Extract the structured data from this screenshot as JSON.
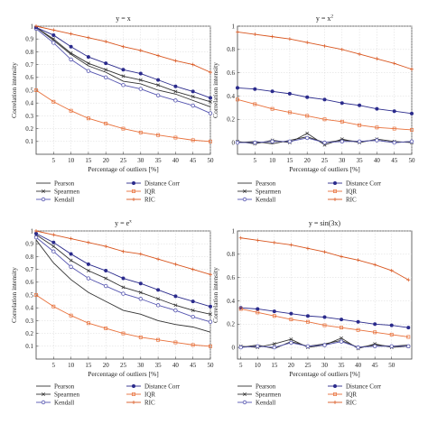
{
  "chart_data": [
    {
      "type": "line",
      "title_base": "y = x",
      "title_sup": "",
      "xlabel": "Percentage of outliers [%]",
      "ylabel": "Correlation intensity",
      "xlim": [
        0,
        50
      ],
      "ylim": [
        0,
        1
      ],
      "xticks": [
        5,
        10,
        15,
        20,
        25,
        30,
        35,
        40,
        45,
        50
      ],
      "yticks": [
        0.1,
        0.2,
        0.3,
        0.4,
        0.5,
        0.6,
        0.7,
        0.8,
        0.9,
        1
      ],
      "series": [
        {
          "name": "Pearson",
          "x": [
            0,
            5,
            10,
            15,
            20,
            25,
            30,
            35,
            40,
            45,
            50
          ],
          "values": [
            0.99,
            0.89,
            0.78,
            0.69,
            0.64,
            0.57,
            0.55,
            0.5,
            0.47,
            0.42,
            0.37
          ]
        },
        {
          "name": "Spearmen",
          "x": [
            0,
            5,
            10,
            15,
            20,
            25,
            30,
            35,
            40,
            45,
            50
          ],
          "values": [
            0.99,
            0.9,
            0.79,
            0.71,
            0.66,
            0.61,
            0.58,
            0.54,
            0.49,
            0.45,
            0.41
          ]
        },
        {
          "name": "Kendall",
          "x": [
            0,
            5,
            10,
            15,
            20,
            25,
            30,
            35,
            40,
            45,
            50
          ],
          "values": [
            0.98,
            0.87,
            0.74,
            0.65,
            0.6,
            0.54,
            0.51,
            0.46,
            0.42,
            0.38,
            0.32
          ]
        },
        {
          "name": "Distance Corr",
          "x": [
            0,
            5,
            10,
            15,
            20,
            25,
            30,
            35,
            40,
            45,
            50
          ],
          "values": [
            0.99,
            0.93,
            0.84,
            0.76,
            0.71,
            0.66,
            0.63,
            0.58,
            0.53,
            0.49,
            0.44
          ]
        },
        {
          "name": "IQR",
          "x": [
            0,
            5,
            10,
            15,
            20,
            25,
            30,
            35,
            40,
            45,
            50
          ],
          "values": [
            0.5,
            0.41,
            0.34,
            0.28,
            0.24,
            0.2,
            0.17,
            0.15,
            0.13,
            0.11,
            0.1
          ]
        },
        {
          "name": "RIC",
          "x": [
            0,
            5,
            10,
            15,
            20,
            25,
            30,
            35,
            40,
            45,
            50
          ],
          "values": [
            1,
            0.97,
            0.94,
            0.91,
            0.88,
            0.84,
            0.81,
            0.77,
            0.73,
            0.7,
            0.64
          ]
        }
      ]
    },
    {
      "type": "line",
      "title_base": "y = x",
      "title_sup": "2",
      "xlabel": "Percentage of outliers [%]",
      "ylabel": "Correlation intensity",
      "xlim": [
        0,
        50
      ],
      "ylim": [
        -0.1,
        1
      ],
      "xticks": [
        5,
        10,
        15,
        20,
        25,
        30,
        35,
        40,
        45,
        50
      ],
      "yticks": [
        0,
        0.2,
        0.4,
        0.6,
        0.8,
        1
      ],
      "series": [
        {
          "name": "Pearson",
          "x": [
            0,
            5,
            10,
            15,
            20,
            25,
            30,
            35,
            40,
            45,
            50
          ],
          "values": [
            0.0,
            0.01,
            -0.01,
            0.02,
            0.05,
            0.0,
            0.02,
            0.01,
            0.02,
            0.0,
            0.01
          ]
        },
        {
          "name": "Spearmen",
          "x": [
            0,
            5,
            10,
            15,
            20,
            25,
            30,
            35,
            40,
            45,
            50
          ],
          "values": [
            0.01,
            -0.01,
            0.02,
            0.0,
            0.08,
            -0.02,
            0.03,
            0.0,
            0.03,
            0.01,
            0.0
          ]
        },
        {
          "name": "Kendall",
          "x": [
            0,
            5,
            10,
            15,
            20,
            25,
            30,
            35,
            40,
            45,
            50
          ],
          "values": [
            0.0,
            0.0,
            0.01,
            0.01,
            0.04,
            0.0,
            0.01,
            0.01,
            0.02,
            0.0,
            0.01
          ]
        },
        {
          "name": "Distance Corr",
          "x": [
            0,
            5,
            10,
            15,
            20,
            25,
            30,
            35,
            40,
            45,
            50
          ],
          "values": [
            0.47,
            0.46,
            0.44,
            0.42,
            0.39,
            0.37,
            0.34,
            0.32,
            0.29,
            0.27,
            0.25
          ]
        },
        {
          "name": "IQR",
          "x": [
            0,
            5,
            10,
            15,
            20,
            25,
            30,
            35,
            40,
            45,
            50
          ],
          "values": [
            0.37,
            0.33,
            0.29,
            0.26,
            0.23,
            0.2,
            0.18,
            0.15,
            0.13,
            0.12,
            0.11
          ]
        },
        {
          "name": "RIC",
          "x": [
            0,
            5,
            10,
            15,
            20,
            25,
            30,
            35,
            40,
            45,
            50
          ],
          "values": [
            0.95,
            0.93,
            0.91,
            0.89,
            0.86,
            0.83,
            0.8,
            0.76,
            0.72,
            0.68,
            0.63
          ]
        }
      ]
    },
    {
      "type": "line",
      "title_base": "y = e",
      "title_sup": "x",
      "xlabel": "Percentage of outliers [%]",
      "ylabel": "Correlation intensity",
      "xlim": [
        0,
        50
      ],
      "ylim": [
        0,
        1
      ],
      "xticks": [
        5,
        10,
        15,
        20,
        25,
        30,
        35,
        40,
        45,
        50
      ],
      "yticks": [
        0.1,
        0.2,
        0.3,
        0.4,
        0.5,
        0.6,
        0.7,
        0.8,
        0.9,
        1
      ],
      "series": [
        {
          "name": "Pearson",
          "x": [
            0,
            5,
            10,
            15,
            20,
            25,
            30,
            35,
            40,
            45,
            50
          ],
          "values": [
            0.93,
            0.75,
            0.62,
            0.52,
            0.45,
            0.38,
            0.35,
            0.3,
            0.27,
            0.25,
            0.21
          ]
        },
        {
          "name": "Spearmen",
          "x": [
            0,
            5,
            10,
            15,
            20,
            25,
            30,
            35,
            40,
            45,
            50
          ],
          "values": [
            0.97,
            0.88,
            0.77,
            0.69,
            0.63,
            0.56,
            0.52,
            0.47,
            0.42,
            0.38,
            0.35
          ]
        },
        {
          "name": "Kendall",
          "x": [
            0,
            5,
            10,
            15,
            20,
            25,
            30,
            35,
            40,
            45,
            50
          ],
          "values": [
            0.95,
            0.84,
            0.72,
            0.63,
            0.57,
            0.51,
            0.47,
            0.42,
            0.38,
            0.33,
            0.29
          ]
        },
        {
          "name": "Distance Corr",
          "x": [
            0,
            5,
            10,
            15,
            20,
            25,
            30,
            35,
            40,
            45,
            50
          ],
          "values": [
            0.98,
            0.91,
            0.82,
            0.74,
            0.69,
            0.63,
            0.59,
            0.54,
            0.49,
            0.45,
            0.41
          ]
        },
        {
          "name": "IQR",
          "x": [
            0,
            5,
            10,
            15,
            20,
            25,
            30,
            35,
            40,
            45,
            50
          ],
          "values": [
            0.5,
            0.41,
            0.34,
            0.28,
            0.24,
            0.2,
            0.17,
            0.15,
            0.13,
            0.11,
            0.1
          ]
        },
        {
          "name": "RIC",
          "x": [
            0,
            5,
            10,
            15,
            20,
            25,
            30,
            35,
            40,
            45,
            50
          ],
          "values": [
            1,
            0.97,
            0.94,
            0.91,
            0.88,
            0.84,
            0.82,
            0.78,
            0.74,
            0.7,
            0.66
          ]
        }
      ]
    },
    {
      "type": "line",
      "title_base": "y = sin(3x)",
      "title_sup": "",
      "xlabel": "Percentage of outliers [%]",
      "ylabel": "Correlation intensity",
      "xlim": [
        4,
        56
      ],
      "ylim": [
        -0.1,
        1
      ],
      "xticks": [
        5,
        10,
        15,
        20,
        25,
        30,
        35,
        40,
        45,
        50
      ],
      "yticks": [
        0,
        0.2,
        0.4,
        0.6,
        0.8,
        1
      ],
      "series": [
        {
          "name": "Pearson",
          "x": [
            5,
            10,
            15,
            20,
            25,
            30,
            35,
            40,
            45,
            50,
            55
          ],
          "values": [
            0.0,
            0.02,
            -0.01,
            0.05,
            0.01,
            0.03,
            0.06,
            0.0,
            0.02,
            0.01,
            0.02
          ]
        },
        {
          "name": "Spearmen",
          "x": [
            5,
            10,
            15,
            20,
            25,
            30,
            35,
            40,
            45,
            50,
            55
          ],
          "values": [
            0.01,
            0.0,
            0.03,
            0.07,
            0.0,
            0.02,
            0.08,
            -0.01,
            0.03,
            0.0,
            0.01
          ]
        },
        {
          "name": "Kendall",
          "x": [
            5,
            10,
            15,
            20,
            25,
            30,
            35,
            40,
            45,
            50,
            55
          ],
          "values": [
            0.0,
            0.01,
            0.0,
            0.04,
            0.01,
            0.02,
            0.05,
            0.0,
            0.01,
            0.01,
            0.01
          ]
        },
        {
          "name": "Distance Corr",
          "x": [
            5,
            10,
            15,
            20,
            25,
            30,
            35,
            40,
            45,
            50,
            55
          ],
          "values": [
            0.34,
            0.33,
            0.31,
            0.29,
            0.27,
            0.26,
            0.24,
            0.22,
            0.2,
            0.19,
            0.17
          ]
        },
        {
          "name": "IQR",
          "x": [
            5,
            10,
            15,
            20,
            25,
            30,
            35,
            40,
            45,
            50,
            55
          ],
          "values": [
            0.33,
            0.3,
            0.27,
            0.24,
            0.22,
            0.19,
            0.17,
            0.15,
            0.13,
            0.11,
            0.09
          ]
        },
        {
          "name": "RIC",
          "x": [
            5,
            10,
            15,
            20,
            25,
            30,
            35,
            40,
            45,
            50,
            55
          ],
          "values": [
            0.94,
            0.92,
            0.9,
            0.88,
            0.85,
            0.82,
            0.78,
            0.75,
            0.71,
            0.66,
            0.58
          ]
        }
      ]
    }
  ],
  "legend": {
    "placement": "below each panel, two columns",
    "entries": [
      {
        "name": "Pearson",
        "color": "#333333",
        "marker": "none"
      },
      {
        "name": "Distance Corr",
        "color": "#2b2b8c",
        "marker": "filled-circle"
      },
      {
        "name": "Spearmen",
        "color": "#333333",
        "marker": "cross"
      },
      {
        "name": "IQR",
        "color": "#e8703a",
        "marker": "square"
      },
      {
        "name": "Kendall",
        "color": "#5555b0",
        "marker": "open-circle"
      },
      {
        "name": "RIC",
        "color": "#d9561f",
        "marker": "plus"
      }
    ]
  },
  "styles": {
    "Pearson": {
      "color": "#333333",
      "marker": "none"
    },
    "Spearmen": {
      "color": "#333333",
      "marker": "cross"
    },
    "Kendall": {
      "color": "#5555b0",
      "marker": "open-circle"
    },
    "Distance Corr": {
      "color": "#2b2b8c",
      "marker": "filled-circle"
    },
    "IQR": {
      "color": "#e8703a",
      "marker": "square"
    },
    "RIC": {
      "color": "#d9561f",
      "marker": "plus"
    }
  }
}
